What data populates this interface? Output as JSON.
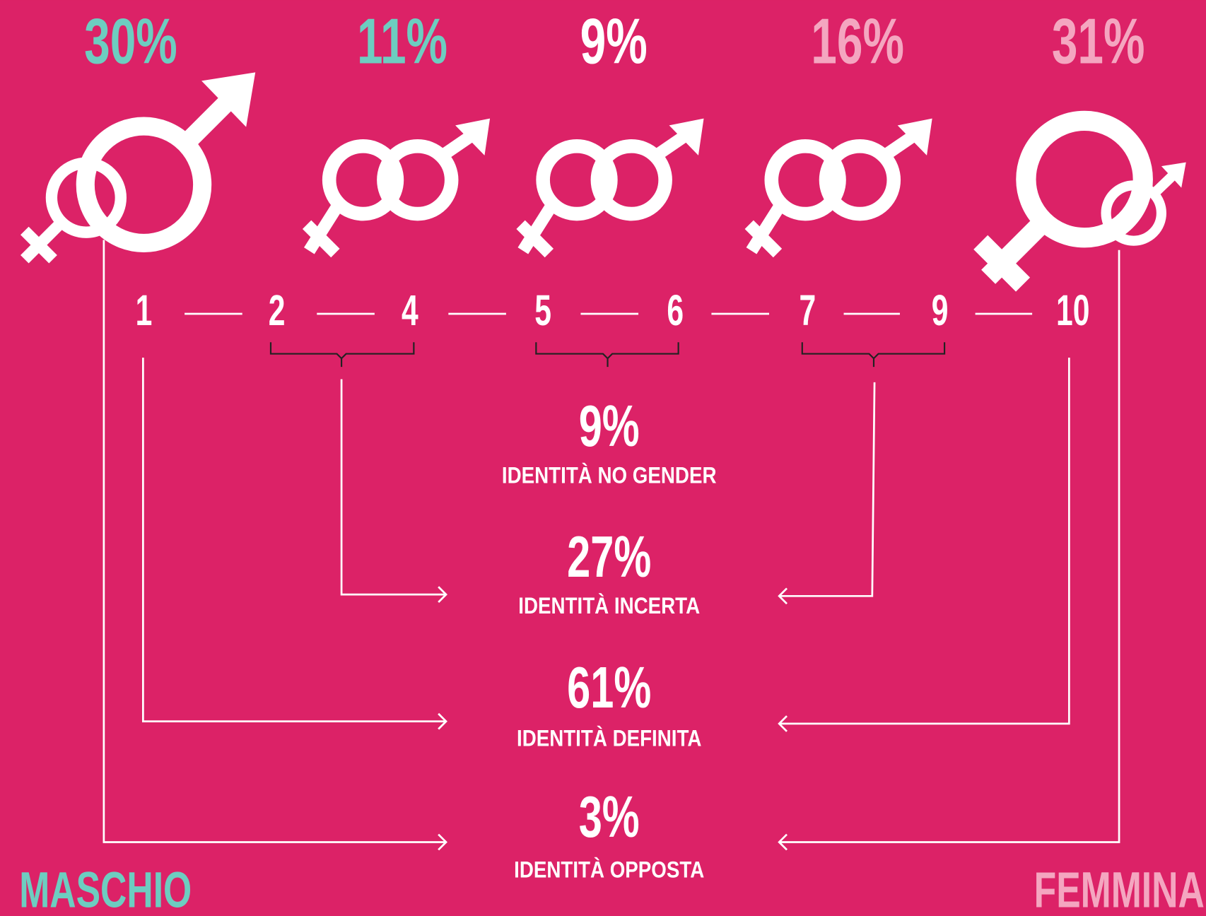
{
  "top_percentages": [
    "30%",
    "11%",
    "9%",
    "16%",
    "31%"
  ],
  "scale": [
    "1",
    "2",
    "4",
    "5",
    "6",
    "7",
    "9",
    "10"
  ],
  "results": [
    {
      "value": "9%",
      "label": "IDENTITÀ NO GENDER"
    },
    {
      "value": "27%",
      "label": "IDENTITÀ INCERTA"
    },
    {
      "value": "61%",
      "label": "IDENTITÀ DEFINITA"
    },
    {
      "value": "3%",
      "label": "IDENTITÀ OPPOSTA"
    }
  ],
  "labels": {
    "male": "MASCHIO",
    "female": "FEMMINA"
  }
}
